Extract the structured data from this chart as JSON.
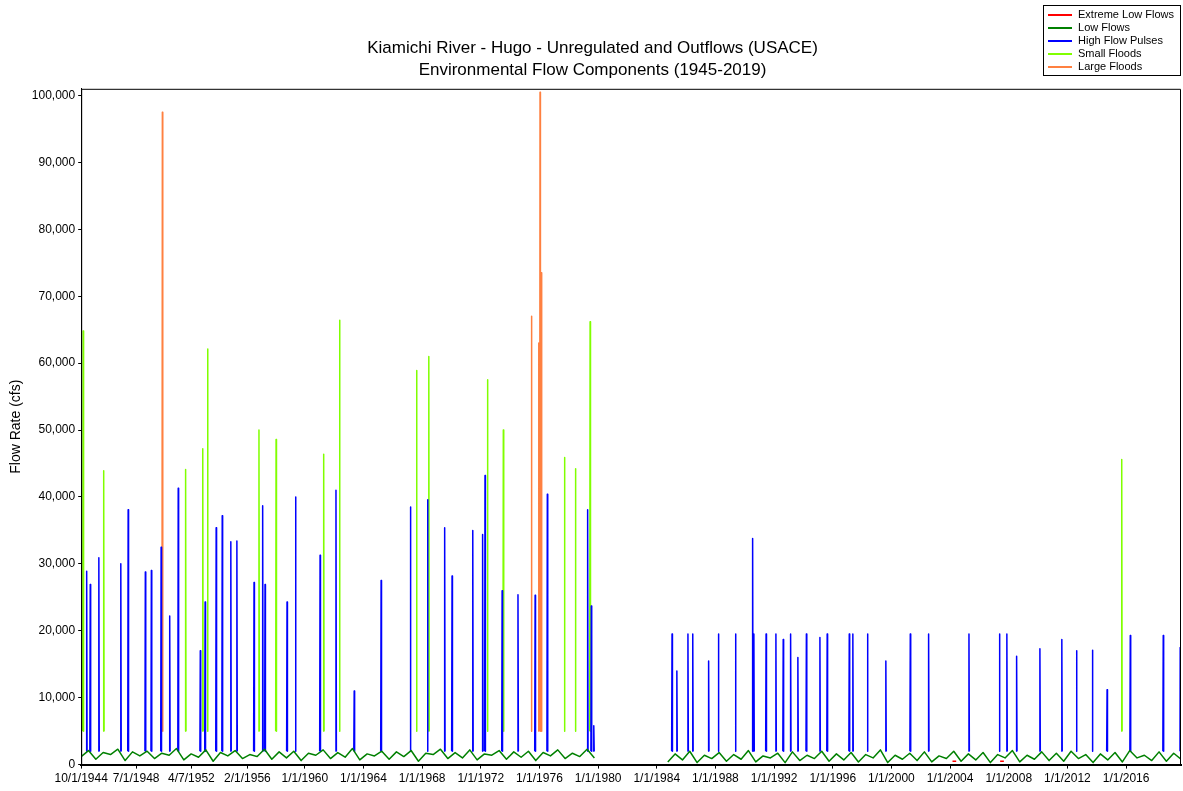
{
  "chart_data": {
    "type": "line",
    "title": "Kiamichi River - Hugo - Unregulated and Outflows (USACE)",
    "subtitle": "Environmental Flow Components (1945-2019)",
    "ylabel": "Flow Rate (cfs)",
    "xlim": [
      "1944-10-01",
      "2019-09-30"
    ],
    "xticks": [
      {
        "value": "1944-10-01",
        "label": "10/1/1944"
      },
      {
        "value": "1948-07-01",
        "label": "7/1/1948"
      },
      {
        "value": "1952-04-07",
        "label": "4/7/1952"
      },
      {
        "value": "1956-02-01",
        "label": "2/1/1956"
      },
      {
        "value": "1960-01-01",
        "label": "1/1/1960"
      },
      {
        "value": "1964-01-01",
        "label": "1/1/1964"
      },
      {
        "value": "1968-01-01",
        "label": "1/1/1968"
      },
      {
        "value": "1972-01-01",
        "label": "1/1/1972"
      },
      {
        "value": "1976-01-01",
        "label": "1/1/1976"
      },
      {
        "value": "1980-01-01",
        "label": "1/1/1980"
      },
      {
        "value": "1984-01-01",
        "label": "1/1/1984"
      },
      {
        "value": "1988-01-01",
        "label": "1/1/1988"
      },
      {
        "value": "1992-01-01",
        "label": "1/1/1992"
      },
      {
        "value": "1996-01-01",
        "label": "1/1/1996"
      },
      {
        "value": "2000-01-01",
        "label": "1/1/2000"
      },
      {
        "value": "2004-01-01",
        "label": "1/1/2004"
      },
      {
        "value": "2008-01-01",
        "label": "1/1/2008"
      },
      {
        "value": "2012-01-01",
        "label": "1/1/2012"
      },
      {
        "value": "2016-01-01",
        "label": "1/1/2016"
      }
    ],
    "ylim": [
      0,
      101000
    ],
    "yticks": [
      0,
      {
        "value": 10000,
        "label": "10,000"
      },
      {
        "value": 20000,
        "label": "20,000"
      },
      {
        "value": 30000,
        "label": "30,000"
      },
      {
        "value": 40000,
        "label": "40,000"
      },
      {
        "value": 50000,
        "label": "50,000"
      },
      {
        "value": 60000,
        "label": "60,000"
      },
      {
        "value": 70000,
        "label": "70,000"
      },
      {
        "value": 80000,
        "label": "80,000"
      },
      {
        "value": 90000,
        "label": "90,000"
      },
      {
        "value": 100000,
        "label": "100,000"
      }
    ],
    "grid": false,
    "legend": "top right",
    "marker": "none",
    "line_style": "solid",
    "series": [
      {
        "name": "Extreme Low Flows",
        "color": "#ff0000",
        "x": [
          "2004-03-01",
          "2004-06-01",
          "2004-06-15",
          "2007-06-01",
          "2007-09-01"
        ],
        "values": [
          500,
          500,
          null,
          500,
          500
        ]
      },
      {
        "name": "Low Flows",
        "color": "#008000",
        "x": [
          "1944-10-01",
          "1945-04-01",
          "1945-10-01",
          "1946-04-01",
          "1946-10-01",
          "1947-04-01",
          "1947-10-01",
          "1948-04-01",
          "1948-10-01",
          "1949-04-01",
          "1949-10-01",
          "1950-04-01",
          "1950-10-01",
          "1951-04-01",
          "1951-10-01",
          "1952-04-01",
          "1952-10-01",
          "1953-04-01",
          "1953-10-01",
          "1954-04-01",
          "1954-10-01",
          "1955-04-01",
          "1955-10-01",
          "1956-04-01",
          "1956-10-01",
          "1957-04-01",
          "1957-10-01",
          "1958-04-01",
          "1958-10-01",
          "1959-04-01",
          "1959-10-01",
          "1960-04-01",
          "1960-10-01",
          "1961-04-01",
          "1961-10-01",
          "1962-04-01",
          "1962-10-01",
          "1963-04-01",
          "1963-10-01",
          "1964-04-01",
          "1964-10-01",
          "1965-04-01",
          "1965-10-01",
          "1966-04-01",
          "1966-10-01",
          "1967-04-01",
          "1967-10-01",
          "1968-04-01",
          "1968-10-01",
          "1969-04-01",
          "1969-10-01",
          "1970-04-01",
          "1970-10-01",
          "1971-04-01",
          "1971-10-01",
          "1972-04-01",
          "1972-10-01",
          "1973-04-01",
          "1973-10-01",
          "1974-04-01",
          "1974-10-01",
          "1975-04-01",
          "1975-10-01",
          "1976-04-01",
          "1976-10-01",
          "1977-04-01",
          "1977-10-01",
          "1978-04-01",
          "1978-10-01",
          "1979-04-01",
          "1979-09-30",
          "1982-01-01",
          "1984-10-01",
          "1985-04-01",
          "1985-10-01",
          "1986-04-01",
          "1986-10-01",
          "1987-04-01",
          "1987-10-01",
          "1988-04-01",
          "1988-10-01",
          "1989-04-01",
          "1989-10-01",
          "1990-04-01",
          "1990-10-01",
          "1991-04-01",
          "1991-10-01",
          "1992-04-01",
          "1992-10-01",
          "1993-04-01",
          "1993-10-01",
          "1994-04-01",
          "1994-10-01",
          "1995-04-01",
          "1995-10-01",
          "1996-04-01",
          "1996-10-01",
          "1997-04-01",
          "1997-10-01",
          "1998-04-01",
          "1998-10-01",
          "1999-04-01",
          "1999-10-01",
          "2000-04-01",
          "2000-10-01",
          "2001-04-01",
          "2001-10-01",
          "2002-04-01",
          "2002-10-01",
          "2003-04-01",
          "2003-10-01",
          "2004-04-01",
          "2004-10-01",
          "2005-04-01",
          "2005-10-01",
          "2006-04-01",
          "2006-10-01",
          "2007-04-01",
          "2007-10-01",
          "2008-04-01",
          "2008-10-01",
          "2009-04-01",
          "2009-10-01",
          "2010-04-01",
          "2010-10-01",
          "2011-04-01",
          "2011-10-01",
          "2012-04-01",
          "2012-10-01",
          "2013-04-01",
          "2013-10-01",
          "2014-04-01",
          "2014-10-01",
          "2015-04-01",
          "2015-10-01",
          "2016-04-01",
          "2016-10-01",
          "2017-04-01",
          "2017-10-01",
          "2018-04-01",
          "2018-10-01",
          "2019-04-01",
          "2019-09-30"
        ],
        "values": [
          1200,
          2100,
          800,
          1800,
          1500,
          2300,
          600,
          1900,
          1300,
          2000,
          900,
          1700,
          1400,
          2400,
          700,
          1600,
          1100,
          2200,
          500,
          1800,
          1300,
          2100,
          900,
          1500,
          1200,
          2300,
          800,
          1900,
          1000,
          2000,
          600,
          1700,
          1400,
          2200,
          900,
          1800,
          1100,
          2400,
          700,
          1600,
          1300,
          2000,
          800,
          1900,
          1200,
          2100,
          500,
          1700,
          1500,
          2300,
          900,
          1800,
          1000,
          2200,
          700,
          1600,
          1400,
          2100,
          800,
          1900,
          1100,
          2000,
          600,
          1800,
          1300,
          2200,
          900,
          1700,
          1200,
          2300,
          1000,
          null,
          400,
          1600,
          700,
          2000,
          300,
          1400,
          900,
          1800,
          500,
          1500,
          800,
          2100,
          400,
          1300,
          1000,
          1700,
          300,
          1900,
          600,
          1400,
          900,
          2000,
          500,
          1600,
          700,
          1800,
          400,
          1500,
          1000,
          2200,
          300,
          1400,
          800,
          1700,
          600,
          1900,
          400,
          1300,
          900,
          2000,
          500,
          1600,
          700,
          1800,
          300,
          1500,
          1000,
          2100,
          400,
          1400,
          800,
          1900,
          600,
          1700,
          500,
          2000,
          900,
          1500,
          300,
          1600,
          700,
          1800,
          400,
          2100,
          1000,
          1400,
          600,
          1900,
          500,
          1700,
          800
        ]
      },
      {
        "name": "High Flow Pulses",
        "color": "#0000ff",
        "x": [
          "1945-02-05",
          "1945-02-15",
          "1945-02-25",
          "1945-02-28",
          "1945-05-05",
          "1945-05-15",
          "1945-05-25",
          "1945-05-28",
          "1945-12-05",
          "1945-12-15",
          "1945-12-25",
          "1945-12-28",
          "1947-06-05",
          "1947-06-15",
          "1947-06-25",
          "1947-06-28",
          "1947-12-05",
          "1947-12-15",
          "1947-12-25",
          "1947-12-28",
          "1949-02-05",
          "1949-02-15",
          "1949-02-25",
          "1949-02-28",
          "1949-07-05",
          "1949-07-15",
          "1949-07-25",
          "1949-07-28",
          "1950-03-05",
          "1950-03-15",
          "1950-03-25",
          "1950-03-28",
          "1950-10-05",
          "1950-10-15",
          "1950-10-25",
          "1950-10-28",
          "1951-05-05",
          "1951-05-15",
          "1951-05-25",
          "1951-05-28",
          "1952-11-05",
          "1952-11-15",
          "1952-11-25",
          "1952-11-28",
          "1953-03-05",
          "1953-03-15",
          "1953-03-25",
          "1953-03-28",
          "1953-12-05",
          "1953-12-15",
          "1953-12-25",
          "1953-12-28",
          "1954-05-05",
          "1954-05-15",
          "1954-05-25",
          "1954-05-28",
          "1954-12-05",
          "1954-12-15",
          "1954-12-25",
          "1954-12-28",
          "1955-05-05",
          "1955-05-15",
          "1955-05-25",
          "1955-05-28",
          "1956-07-05",
          "1956-07-15",
          "1956-07-25",
          "1956-07-28",
          "1957-02-05",
          "1957-02-15",
          "1957-02-25",
          "1957-02-28",
          "1957-04-05",
          "1957-04-15",
          "1957-04-25",
          "1957-04-28",
          "1958-10-05",
          "1958-10-15",
          "1958-10-25",
          "1958-10-28",
          "1959-05-05",
          "1959-05-15",
          "1959-05-25",
          "1959-05-28",
          "1961-01-05",
          "1961-01-15",
          "1961-01-25",
          "1961-01-28",
          "1962-02-05",
          "1962-02-15",
          "1962-02-25",
          "1962-02-28",
          "1963-05-05",
          "1963-05-15",
          "1963-05-25",
          "1963-05-28",
          "1965-03-05",
          "1965-03-15",
          "1965-03-25",
          "1965-03-28",
          "1967-03-05",
          "1967-03-15",
          "1967-03-25",
          "1967-03-28",
          "1968-05-05",
          "1968-05-15",
          "1968-05-25",
          "1968-05-28",
          "1969-07-05",
          "1969-07-15",
          "1969-07-25",
          "1969-07-28",
          "1970-01-05",
          "1970-01-15",
          "1970-01-25",
          "1970-01-28",
          "1971-06-05",
          "1971-06-15",
          "1971-06-25",
          "1971-06-28",
          "1972-02-05",
          "1972-02-15",
          "1972-02-25",
          "1972-02-28",
          "1972-04-05",
          "1972-04-15",
          "1972-04-25",
          "1972-04-28",
          "1973-06-05",
          "1973-06-15",
          "1973-06-25",
          "1973-06-28",
          "1974-07-05",
          "1974-07-15",
          "1974-07-25",
          "1974-07-28",
          "1975-09-05",
          "1975-09-15",
          "1975-09-25",
          "1975-09-28",
          "1976-07-05",
          "1976-07-15",
          "1976-07-25",
          "1976-07-28",
          "1979-04-05",
          "1979-04-15",
          "1979-04-25",
          "1979-04-28",
          "1979-07-05",
          "1979-07-15",
          "1979-07-25",
          "1979-07-28",
          "1979-09-05",
          "1979-09-15",
          "1979-09-25",
          "1979-09-28",
          "1985-01-05",
          "1985-01-15",
          "1985-01-25",
          "1985-01-28",
          "1985-05-05",
          "1985-05-15",
          "1985-05-25",
          "1985-05-28",
          "1986-02-05",
          "1986-02-15",
          "1986-02-25",
          "1986-02-28",
          "1986-06-05",
          "1986-06-15",
          "1986-06-25",
          "1986-06-28",
          "1987-07-05",
          "1987-07-15",
          "1987-07-25",
          "1987-07-28",
          "1988-03-05",
          "1988-03-15",
          "1988-03-25",
          "1988-03-28",
          "1989-05-05",
          "1989-05-15",
          "1989-05-25",
          "1989-05-28",
          "1990-07-05",
          "1990-07-15",
          "1990-07-25",
          "1990-07-28",
          "1990-08-05",
          "1990-08-15",
          "1990-08-25",
          "1990-08-28",
          "1991-06-05",
          "1991-06-15",
          "1991-06-25",
          "1991-06-28",
          "1992-02-05",
          "1992-02-15",
          "1992-02-25",
          "1992-02-28",
          "1992-08-05",
          "1992-08-15",
          "1992-08-25",
          "1992-08-28",
          "1993-02-05",
          "1993-02-15",
          "1993-02-25",
          "1993-02-28",
          "1993-08-05",
          "1993-08-15",
          "1993-08-25",
          "1993-08-28",
          "1994-03-05",
          "1994-03-15",
          "1994-03-25",
          "1994-03-28",
          "1995-02-05",
          "1995-02-15",
          "1995-02-25",
          "1995-02-28",
          "1995-08-05",
          "1995-08-15",
          "1995-08-25",
          "1995-08-28",
          "1997-02-05",
          "1997-02-15",
          "1997-02-25",
          "1997-02-28",
          "1997-05-05",
          "1997-05-15",
          "1997-05-25",
          "1997-05-28",
          "1998-05-05",
          "1998-05-15",
          "1998-05-25",
          "1998-05-28",
          "1999-08-05",
          "1999-08-15",
          "1999-08-25",
          "1999-08-28",
          "2001-04-05",
          "2001-04-15",
          "2001-04-25",
          "2001-04-28",
          "2002-07-05",
          "2002-07-15",
          "2002-07-25",
          "2002-07-28",
          "2005-04-05",
          "2005-04-15",
          "2005-04-25",
          "2005-04-28",
          "2007-05-05",
          "2007-05-15",
          "2007-05-25",
          "2007-05-28",
          "2007-11-05",
          "2007-11-15",
          "2007-11-25",
          "2007-11-28",
          "2008-07-05",
          "2008-07-15",
          "2008-07-25",
          "2008-07-28",
          "2010-02-05",
          "2010-02-15",
          "2010-02-25",
          "2010-02-28",
          "2011-08-05",
          "2011-08-15",
          "2011-08-25",
          "2011-08-28",
          "2012-08-05",
          "2012-08-15",
          "2012-08-25",
          "2012-08-28",
          "2013-09-05",
          "2013-09-15",
          "2013-09-25",
          "2013-09-28",
          "2014-09-05",
          "2014-09-15",
          "2014-09-25",
          "2014-09-28",
          "2016-04-05",
          "2016-04-15",
          "2016-04-25",
          "2016-04-28",
          "2018-07-05",
          "2018-07-15",
          "2018-07-25",
          "2018-07-28",
          "2019-09-05",
          "2019-09-10",
          "2019-09-20"
        ],
        "values": [
          2000,
          28900,
          2000,
          null,
          2000,
          26900,
          2000,
          null,
          2000,
          30900,
          2000,
          null,
          2000,
          30000,
          2000,
          null,
          2000,
          38100,
          2000,
          null,
          2000,
          28800,
          2000,
          null,
          2000,
          29000,
          2000,
          null,
          2000,
          32500,
          2000,
          null,
          2000,
          22200,
          2000,
          null,
          2000,
          41300,
          2000,
          null,
          2000,
          17000,
          2000,
          null,
          2000,
          24300,
          2000,
          null,
          2000,
          35400,
          2000,
          null,
          2000,
          37200,
          2000,
          null,
          2000,
          33300,
          2000,
          null,
          2000,
          33400,
          2000,
          null,
          2000,
          27200,
          2000,
          null,
          2000,
          38700,
          2000,
          null,
          2000,
          26900,
          2000,
          null,
          2000,
          24300,
          2000,
          null,
          2000,
          40000,
          2000,
          null,
          2000,
          31300,
          2000,
          null,
          2000,
          41000,
          2000,
          null,
          2000,
          11000,
          2000,
          null,
          2000,
          27500,
          2000,
          null,
          2000,
          38500,
          2000,
          null,
          2000,
          39600,
          2000,
          null,
          2000,
          35400,
          2000,
          null,
          2000,
          28200,
          2000,
          null,
          2000,
          35000,
          2000,
          null,
          2000,
          34400,
          2000,
          null,
          2000,
          43200,
          2000,
          null,
          2000,
          26000,
          2000,
          null,
          2000,
          25400,
          2000,
          null,
          2000,
          25300,
          2000,
          null,
          2000,
          40400,
          2000,
          null,
          2000,
          38100,
          2000,
          null,
          2000,
          23700,
          2000,
          null,
          2000,
          5800,
          2000,
          null,
          2000,
          19500,
          2000,
          null,
          2000,
          14000,
          2000,
          null,
          2000,
          19500,
          2000,
          null,
          2000,
          19500,
          2000,
          null,
          2000,
          15500,
          2000,
          null,
          2000,
          19500,
          2000,
          null,
          2000,
          19500,
          2000,
          null,
          2000,
          33800,
          2000,
          null,
          2000,
          19500,
          2000,
          null,
          2000,
          19500,
          2000,
          null,
          2000,
          19500,
          2000,
          null,
          2000,
          18700,
          2000,
          null,
          2000,
          19500,
          2000,
          null,
          2000,
          16000,
          2000,
          null,
          2000,
          19500,
          2000,
          null,
          2000,
          19000,
          2000,
          null,
          2000,
          19500,
          2000,
          null,
          2000,
          19500,
          2000,
          null,
          2000,
          19500,
          2000,
          null,
          2000,
          19500,
          2000,
          null,
          2000,
          15500,
          2000,
          null,
          2000,
          19500,
          2000,
          null,
          2000,
          19500,
          2000,
          null,
          2000,
          19500,
          2000,
          null,
          2000,
          19500,
          2000,
          null,
          2000,
          19500,
          2000,
          null,
          2000,
          16200,
          2000,
          null,
          2000,
          17300,
          2000,
          null,
          2000,
          18700,
          2000,
          null,
          2000,
          17000,
          2000,
          null,
          2000,
          17100,
          2000,
          null,
          2000,
          11200,
          2000,
          null,
          2000,
          19300,
          2000,
          null,
          2000,
          19300,
          2000,
          null,
          2000,
          17500,
          2000
        ]
      },
      {
        "name": "Small Floods",
        "color": "#80ff00",
        "x": [
          "1944-11-10",
          "1944-11-20",
          "1944-11-30",
          "1944-12-02",
          "1946-04-05",
          "1946-04-15",
          "1946-04-25",
          "1946-04-28",
          "1951-11-05",
          "1951-11-15",
          "1951-11-25",
          "1951-11-28",
          "1953-01-05",
          "1953-01-15",
          "1953-01-25",
          "1953-01-28",
          "1953-05-05",
          "1953-05-15",
          "1953-05-25",
          "1953-05-28",
          "1956-11-05",
          "1956-11-15",
          "1956-11-25",
          "1956-11-28",
          "1958-01-05",
          "1958-01-15",
          "1958-01-25",
          "1958-01-28",
          "1961-04-05",
          "1961-04-15",
          "1961-04-25",
          "1961-04-28",
          "1962-05-05",
          "1962-05-15",
          "1962-05-25",
          "1962-05-28",
          "1967-08-05",
          "1967-08-15",
          "1967-08-25",
          "1967-08-28",
          "1968-06-05",
          "1968-06-15",
          "1968-06-25",
          "1968-06-28",
          "1972-06-05",
          "1972-06-15",
          "1972-06-25",
          "1972-06-28",
          "1973-07-05",
          "1973-07-15",
          "1973-07-25",
          "1973-07-28",
          "1977-09-05",
          "1977-09-15",
          "1977-09-25",
          "1977-09-28",
          "1978-06-05",
          "1978-06-15",
          "1978-06-25",
          "1978-06-28",
          "1979-06-05",
          "1979-06-15",
          "1979-06-25",
          "1979-06-28",
          "2015-09-05",
          "2015-09-15",
          "2015-09-25"
        ],
        "values": [
          5000,
          64800,
          5000,
          null,
          5000,
          43900,
          5000,
          null,
          5000,
          44100,
          5000,
          null,
          5000,
          47200,
          5000,
          null,
          5000,
          62100,
          5000,
          null,
          5000,
          50000,
          5000,
          null,
          5000,
          48600,
          5000,
          null,
          5000,
          46400,
          5000,
          null,
          5000,
          66400,
          5000,
          null,
          5000,
          58900,
          5000,
          null,
          5000,
          61000,
          5000,
          null,
          5000,
          57500,
          5000,
          null,
          5000,
          50000,
          5000,
          null,
          5000,
          45900,
          5000,
          null,
          5000,
          44200,
          5000,
          null,
          5000,
          66200,
          5000,
          null,
          5000,
          45600,
          5000
        ]
      },
      {
        "name": "Large Floods",
        "color": "#ff8040",
        "x": [
          "1950-04-05",
          "1950-04-15",
          "1950-04-25",
          "1950-04-28",
          "1975-06-05",
          "1975-06-15",
          "1975-06-25",
          "1975-06-28",
          "1975-12-05",
          "1975-12-15",
          "1975-12-25",
          "1975-12-28",
          "1976-01-05",
          "1976-01-15",
          "1976-01-25",
          "1976-01-28",
          "1976-02-05",
          "1976-02-15",
          "1976-02-25"
        ],
        "values": [
          5000,
          97500,
          5000,
          null,
          5000,
          67000,
          5000,
          null,
          5000,
          63000,
          5000,
          null,
          5000,
          100500,
          5000,
          null,
          5000,
          73500,
          5000
        ]
      }
    ]
  }
}
